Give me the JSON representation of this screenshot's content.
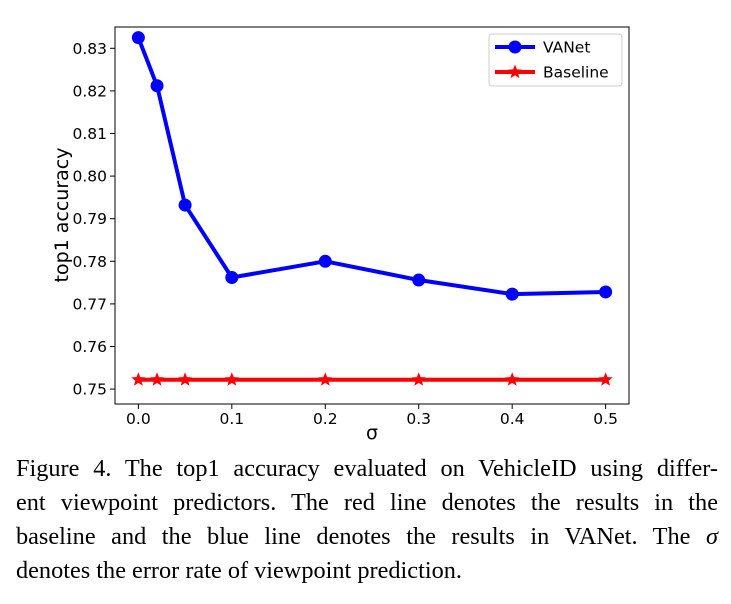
{
  "chart_data": {
    "type": "line",
    "xlabel": "σ",
    "ylabel": "top1 accuracy",
    "xlim": [
      -0.025,
      0.525
    ],
    "ylim": [
      0.7465,
      0.835
    ],
    "xticks": [
      0.0,
      0.1,
      0.2,
      0.3,
      0.4,
      0.5
    ],
    "xtick_labels": [
      "0.0",
      "0.1",
      "0.2",
      "0.3",
      "0.4",
      "0.5"
    ],
    "yticks": [
      0.75,
      0.76,
      0.77,
      0.78,
      0.79,
      0.8,
      0.81,
      0.82,
      0.83
    ],
    "ytick_labels": [
      "0.75",
      "0.76",
      "0.77",
      "0.78",
      "0.79",
      "0.80",
      "0.81",
      "0.82",
      "0.83"
    ],
    "grid": false,
    "legend_position": "top-right",
    "series": [
      {
        "name": "VANet",
        "color": "#0000ff",
        "marker": "circle",
        "x": [
          0.0,
          0.02,
          0.05,
          0.1,
          0.2,
          0.3,
          0.4,
          0.5
        ],
        "y": [
          0.8325,
          0.8212,
          0.7932,
          0.7762,
          0.78,
          0.7756,
          0.7723,
          0.7728
        ]
      },
      {
        "name": "Baseline",
        "color": "#ff0000",
        "marker": "star",
        "x": [
          0.0,
          0.02,
          0.05,
          0.1,
          0.2,
          0.3,
          0.4,
          0.5
        ],
        "y": [
          0.7522,
          0.7522,
          0.7522,
          0.7522,
          0.7522,
          0.7522,
          0.7522,
          0.7522
        ]
      }
    ]
  },
  "caption": {
    "line1": "Figure 4. The top1 accuracy evaluated on VehicleID using differ-",
    "line2": "ent viewpoint predictors.  The red line denotes the results in the",
    "line3a": "baseline and the blue line denotes the results in VANet.  The ",
    "sigma": "σ",
    "line4": "denotes the error rate of viewpoint prediction."
  }
}
